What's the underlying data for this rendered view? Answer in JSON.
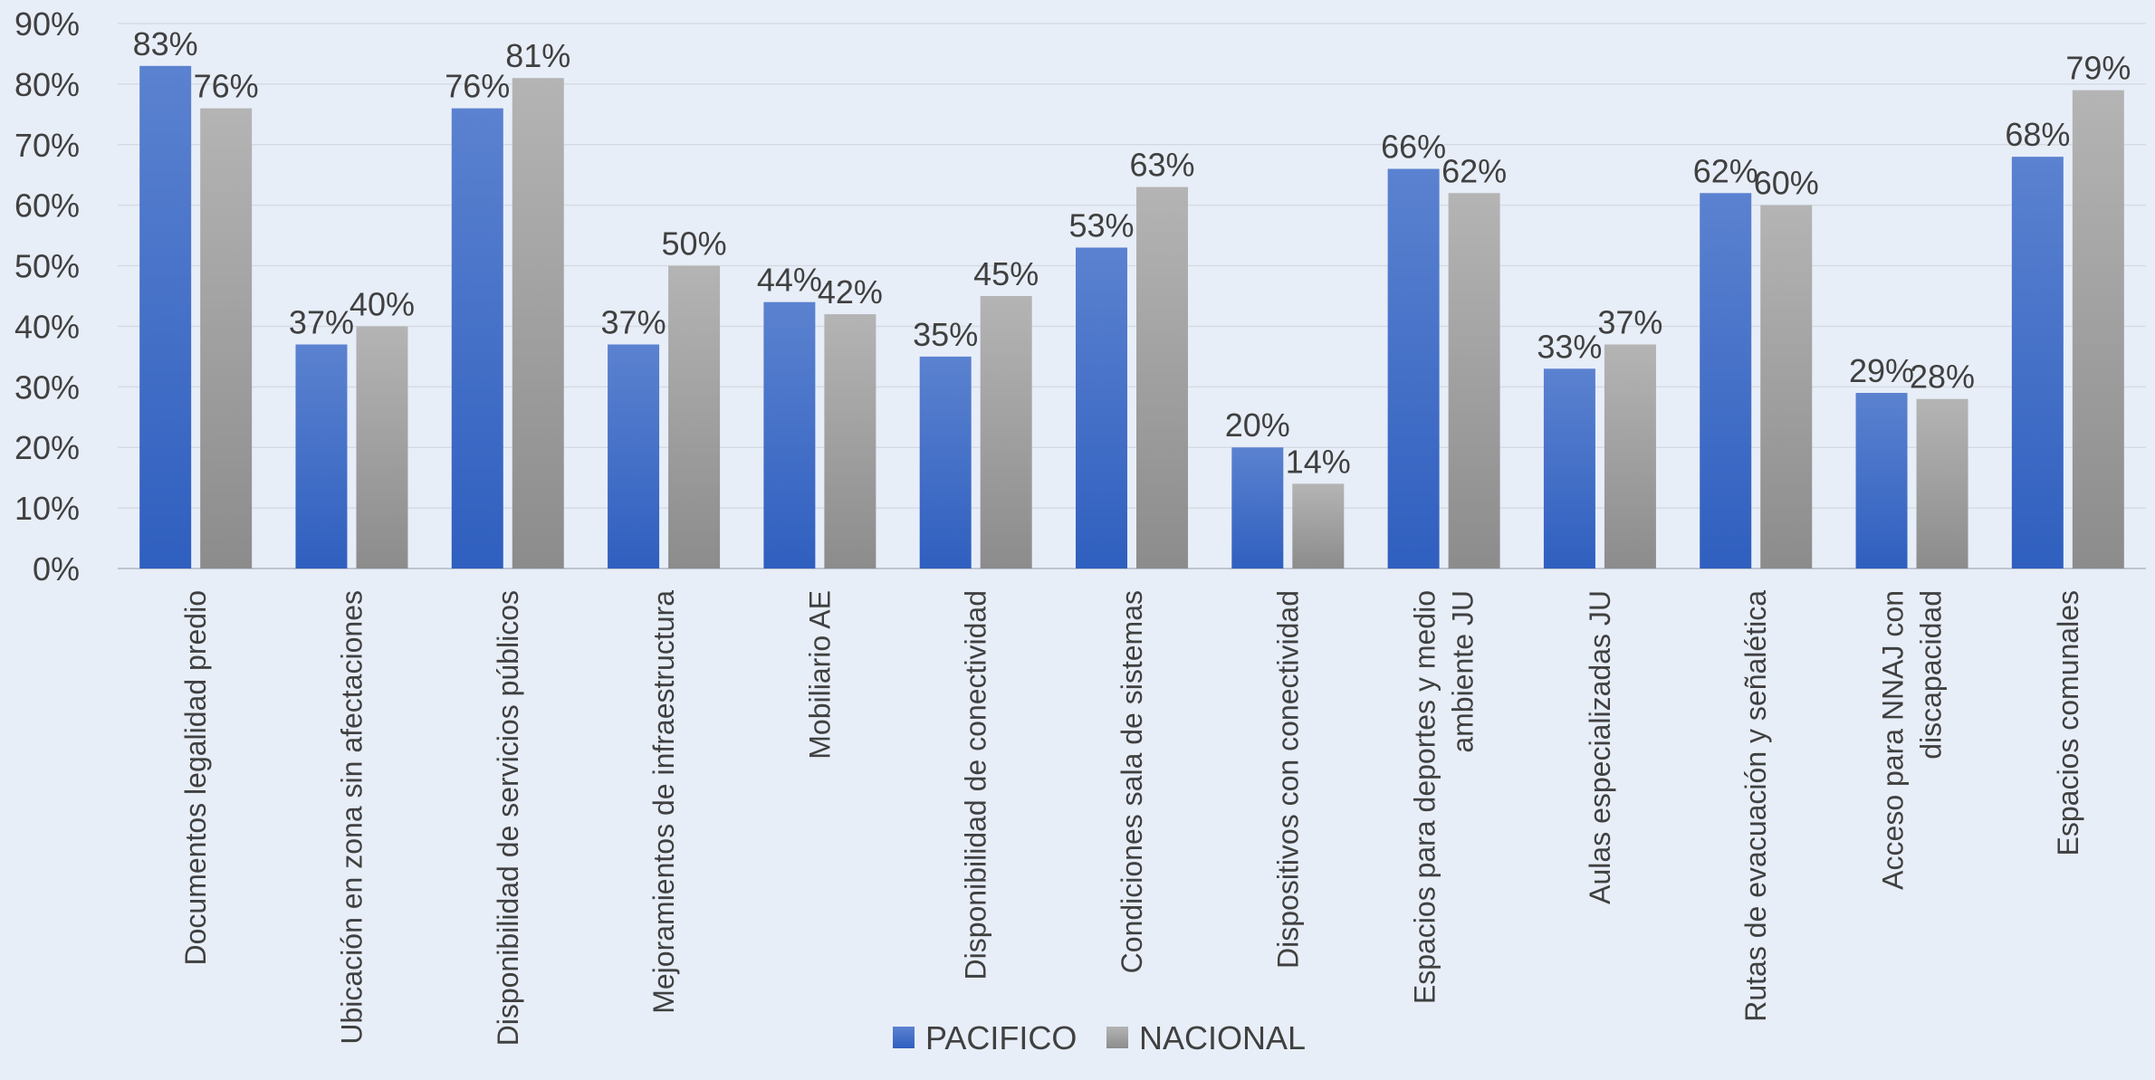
{
  "chart_data": {
    "type": "bar",
    "title": "",
    "xlabel": "",
    "ylabel": "",
    "ylim": [
      0,
      90
    ],
    "yticks": [
      "0%",
      "10%",
      "20%",
      "30%",
      "40%",
      "50%",
      "60%",
      "70%",
      "80%",
      "90%"
    ],
    "grid": true,
    "legend_position": "bottom",
    "categories": [
      [
        "Documentos legalidad predio"
      ],
      [
        "Ubicación en zona sin afectaciones"
      ],
      [
        "Disponibilidad de servicios públicos"
      ],
      [
        "Mejoramientos de infraestructura"
      ],
      [
        "Mobiliario AE"
      ],
      [
        "Disponibilidad de conectividad"
      ],
      [
        "Condiciones sala de sistemas"
      ],
      [
        "Dispositivos con conectividad"
      ],
      [
        "Espacios para deportes y medio",
        "ambiente JU"
      ],
      [
        "Aulas especializadas JU"
      ],
      [
        "Rutas de evacuación y señalética"
      ],
      [
        "Acceso para NNAJ con",
        "discapacidad"
      ],
      [
        "Espacios comunales"
      ]
    ],
    "series": [
      {
        "name": "PACIFICO",
        "color": "#4472c4",
        "values": [
          83,
          37,
          76,
          37,
          44,
          35,
          53,
          20,
          66,
          33,
          62,
          29,
          68
        ],
        "labels": [
          "83%",
          "37%",
          "76%",
          "37%",
          "44%",
          "35%",
          "53%",
          "20%",
          "66%",
          "33%",
          "62%",
          "29%",
          "68%"
        ]
      },
      {
        "name": "NACIONAL",
        "color": "#a5a5a5",
        "values": [
          76,
          40,
          81,
          50,
          42,
          45,
          63,
          14,
          62,
          37,
          60,
          28,
          79
        ],
        "labels": [
          "76%",
          "40%",
          "81%",
          "50%",
          "42%",
          "45%",
          "63%",
          "14%",
          "62%",
          "37%",
          "60%",
          "28%",
          "79%"
        ]
      }
    ]
  }
}
